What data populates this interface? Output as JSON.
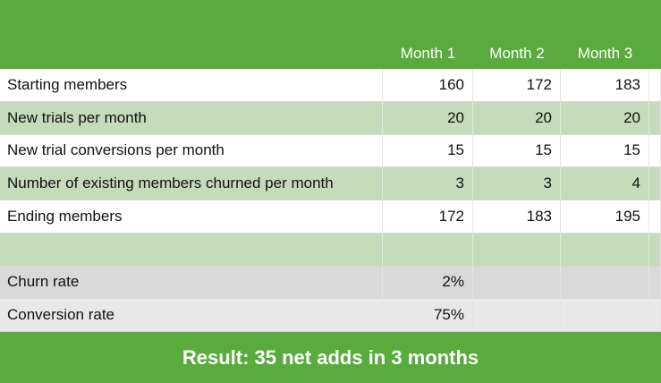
{
  "table": {
    "columns": [
      "Month 1",
      "Month 2",
      "Month 3"
    ],
    "rows": [
      {
        "label": "Starting members",
        "values": [
          160,
          172,
          183
        ]
      },
      {
        "label": "New trials per month",
        "values": [
          20,
          20,
          20
        ]
      },
      {
        "label": "New trial conversions per month",
        "values": [
          15,
          15,
          15
        ]
      },
      {
        "label": "Number of existing members churned per month",
        "values": [
          3,
          3,
          4
        ]
      },
      {
        "label": "Ending members",
        "values": [
          172,
          183,
          195
        ]
      },
      {
        "label": null,
        "values": [
          null,
          null,
          null
        ]
      },
      {
        "label": "Churn rate",
        "values": [
          "2%",
          null,
          null
        ]
      },
      {
        "label": "Conversion rate",
        "values": [
          "75%",
          null,
          null
        ]
      }
    ]
  },
  "footer": {
    "text": "Result: 35 net adds in 3 months"
  }
}
